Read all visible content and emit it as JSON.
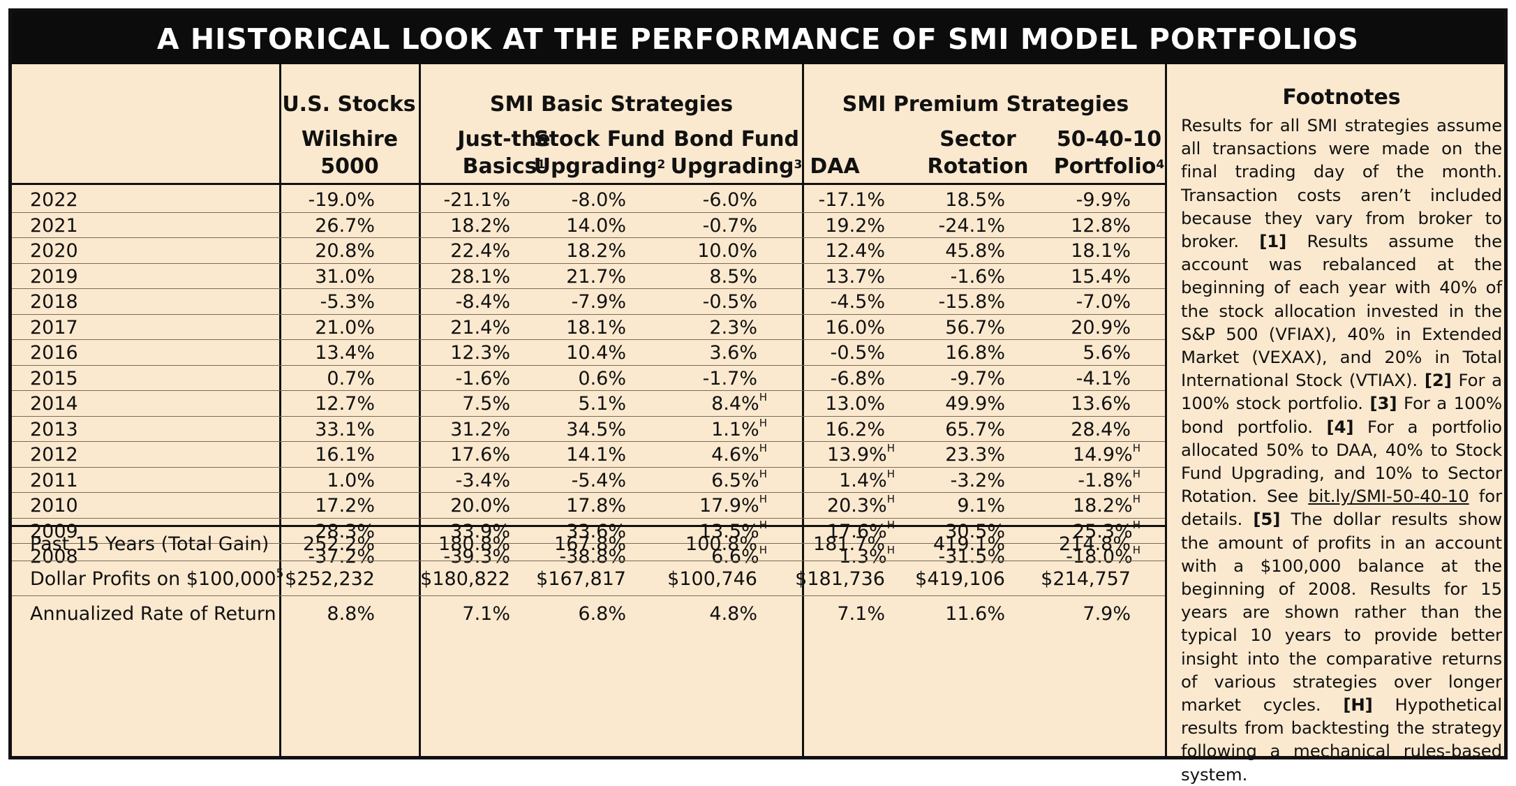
{
  "title": "A HISTORICAL LOOK AT THE PERFORMANCE OF SMI MODEL PORTFOLIOS",
  "groups": {
    "us_stocks": "U.S. Stocks",
    "basic": "SMI Basic Strategies",
    "premium": "SMI Premium Strategies"
  },
  "columns": [
    {
      "line1": "Wilshire",
      "line2": "5000",
      "sup": ""
    },
    {
      "line1": "Just-the",
      "line2": "Basics",
      "sup": "1"
    },
    {
      "line1": "Stock Fund",
      "line2": "Upgrading",
      "sup": "2"
    },
    {
      "line1": "Bond Fund",
      "line2": "Upgrading",
      "sup": "3"
    },
    {
      "line1": "",
      "line2": "DAA",
      "sup": ""
    },
    {
      "line1": "Sector",
      "line2": "Rotation",
      "sup": ""
    },
    {
      "line1": "50-40-10",
      "line2": "Portfolio",
      "sup": "4"
    }
  ],
  "rows": [
    {
      "label": "2022",
      "values": [
        "-19.0%",
        "-21.1%",
        "-8.0%",
        "-6.0%",
        "-17.1%",
        "18.5%",
        "-9.9%"
      ],
      "marks": [
        "",
        "",
        "",
        "",
        "",
        "",
        ""
      ]
    },
    {
      "label": "2021",
      "values": [
        "26.7%",
        "18.2%",
        "14.0%",
        "-0.7%",
        "19.2%",
        "-24.1%",
        "12.8%"
      ],
      "marks": [
        "",
        "",
        "",
        "",
        "",
        "",
        ""
      ]
    },
    {
      "label": "2020",
      "values": [
        "20.8%",
        "22.4%",
        "18.2%",
        "10.0%",
        "12.4%",
        "45.8%",
        "18.1%"
      ],
      "marks": [
        "",
        "",
        "",
        "",
        "",
        "",
        ""
      ]
    },
    {
      "label": "2019",
      "values": [
        "31.0%",
        "28.1%",
        "21.7%",
        "8.5%",
        "13.7%",
        "-1.6%",
        "15.4%"
      ],
      "marks": [
        "",
        "",
        "",
        "",
        "",
        "",
        ""
      ]
    },
    {
      "label": "2018",
      "values": [
        "-5.3%",
        "-8.4%",
        "-7.9%",
        "-0.5%",
        "-4.5%",
        "-15.8%",
        "-7.0%"
      ],
      "marks": [
        "",
        "",
        "",
        "",
        "",
        "",
        ""
      ]
    },
    {
      "label": "2017",
      "values": [
        "21.0%",
        "21.4%",
        "18.1%",
        "2.3%",
        "16.0%",
        "56.7%",
        "20.9%"
      ],
      "marks": [
        "",
        "",
        "",
        "",
        "",
        "",
        ""
      ]
    },
    {
      "label": "2016",
      "values": [
        "13.4%",
        "12.3%",
        "10.4%",
        "3.6%",
        "-0.5%",
        "16.8%",
        "5.6%"
      ],
      "marks": [
        "",
        "",
        "",
        "",
        "",
        "",
        ""
      ]
    },
    {
      "label": "2015",
      "values": [
        "0.7%",
        "-1.6%",
        "0.6%",
        "-1.7%",
        "-6.8%",
        "-9.7%",
        "-4.1%"
      ],
      "marks": [
        "",
        "",
        "",
        "",
        "",
        "",
        ""
      ]
    },
    {
      "label": "2014",
      "values": [
        "12.7%",
        "7.5%",
        "5.1%",
        "8.4%",
        "13.0%",
        "49.9%",
        "13.6%"
      ],
      "marks": [
        "",
        "",
        "",
        "H",
        "",
        "",
        ""
      ]
    },
    {
      "label": "2013",
      "values": [
        "33.1%",
        "31.2%",
        "34.5%",
        "1.1%",
        "16.2%",
        "65.7%",
        "28.4%"
      ],
      "marks": [
        "",
        "",
        "",
        "H",
        "",
        "",
        ""
      ]
    },
    {
      "label": "2012",
      "values": [
        "16.1%",
        "17.6%",
        "14.1%",
        "4.6%",
        "13.9%",
        "23.3%",
        "14.9%"
      ],
      "marks": [
        "",
        "",
        "",
        "H",
        "H",
        "",
        "H"
      ]
    },
    {
      "label": "2011",
      "values": [
        "1.0%",
        "-3.4%",
        "-5.4%",
        "6.5%",
        "1.4%",
        "-3.2%",
        "-1.8%"
      ],
      "marks": [
        "",
        "",
        "",
        "H",
        "H",
        "",
        "H"
      ]
    },
    {
      "label": "2010",
      "values": [
        "17.2%",
        "20.0%",
        "17.8%",
        "17.9%",
        "20.3%",
        "9.1%",
        "18.2%"
      ],
      "marks": [
        "",
        "",
        "",
        "H",
        "H",
        "",
        "H"
      ]
    },
    {
      "label": "2009",
      "values": [
        "28.3%",
        "33.9%",
        "33.6%",
        "13.5%",
        "17.6%",
        "30.5%",
        "25.3%"
      ],
      "marks": [
        "",
        "",
        "",
        "H",
        "H",
        "",
        "H"
      ]
    },
    {
      "label": "2008",
      "values": [
        "-37.2%",
        "-39.3%",
        "-38.8%",
        "6.6%",
        "1.3%",
        "-31.5%",
        "-18.0%"
      ],
      "marks": [
        "",
        "",
        "",
        "H",
        "H",
        "",
        "H"
      ]
    }
  ],
  "summary": [
    {
      "label": "Past 15 Years (Total Gain)",
      "sup": "",
      "values": [
        "252.2%",
        "180.8%",
        "167.8%",
        "100.8%",
        "181.7%",
        "419.1%",
        "214.8%"
      ]
    },
    {
      "label": "Dollar Profits on $100,000",
      "sup": "5",
      "values": [
        "$252,232",
        "$180,822",
        "$167,817",
        "$100,746",
        "$181,736",
        "$419,106",
        "$214,757"
      ]
    },
    {
      "label": "Annualized Rate of Return",
      "sup": "",
      "values": [
        "8.8%",
        "7.1%",
        "6.8%",
        "4.8%",
        "7.1%",
        "11.6%",
        "7.9%"
      ]
    }
  ],
  "footnotes": {
    "heading": "Footnotes",
    "intro": "Results for all SMI strategies assume all transactions were made on the final trading day of the month. Transaction costs aren’t included because they vary from broker to broker.",
    "n1_tag": "[1]",
    "n1": " Results assume the account was rebalanced at the beginning of each year with 40% of the stock allocation invested in the S&P 500 (VFIAX), 40% in Extended Market (VEXAX), and 20% in Total International Stock (VTIAX). ",
    "n2_tag": "[2]",
    "n2": " For a 100% stock portfolio. ",
    "n3_tag": "[3]",
    "n3": " For a 100% bond portfolio. ",
    "n4_tag": "[4]",
    "n4": " For a portfolio allocated 50% to DAA, 40% to Stock Fund Upgrading, and 10% to Sector Rotation. See ",
    "n4_link": "bit.ly/SMI-50-40-10",
    "n4_end": " for details. ",
    "n5_tag": "[5]",
    "n5": " The dollar results show the amount of profits in an account with a $100,000 balance at the beginning of 2008. Results for 15 years are shown rather than the typical 10 years to provide better insight into the comparative returns of various strategies over longer market cycles. ",
    "nh_tag": "[H]",
    "nh": " Hypothetical results from backtesting the strategy following a mechanical rules-based system."
  },
  "colors": {
    "background": "#fbe9cf",
    "title_bar": "#0c0c0c",
    "title_text": "#ffffff"
  }
}
